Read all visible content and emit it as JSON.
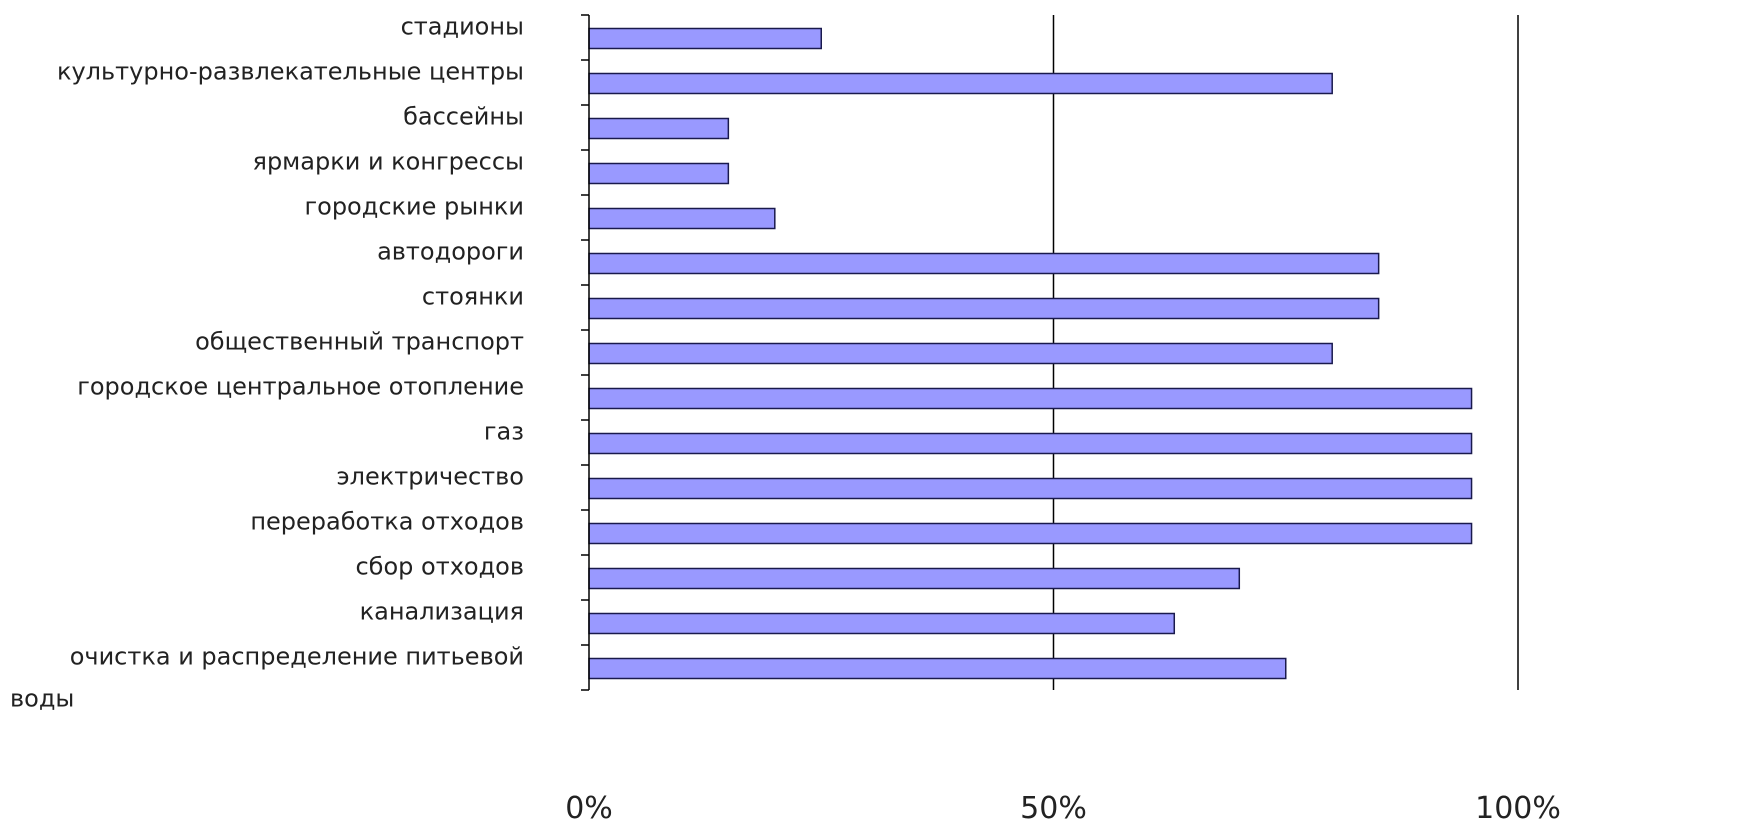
{
  "chart_data": {
    "type": "bar",
    "orientation": "horizontal",
    "title": "",
    "xlabel": "",
    "ylabel": "",
    "xlim": [
      0,
      100
    ],
    "x_ticks": [
      "0%",
      "50%",
      "100%"
    ],
    "grid": "vertical lines at 50% and 100%",
    "legend": "none",
    "bar_color": "#9999ff",
    "bar_edge_color": "#1a1a4d",
    "categories": [
      [
        "стадионы"
      ],
      [
        "культурно-развлекательные центры"
      ],
      [
        "бассейны"
      ],
      [
        "ярмарки и конгрессы"
      ],
      [
        "городские рынки"
      ],
      [
        "автодороги"
      ],
      [
        "стоянки"
      ],
      [
        "общественный транспорт"
      ],
      [
        "городское центральное отопление"
      ],
      [
        "газ"
      ],
      [
        "электричество"
      ],
      [
        "переработка отходов"
      ],
      [
        "сбор отходов"
      ],
      [
        "канализация"
      ],
      [
        "очистка и распределение питьевой",
        "воды"
      ]
    ],
    "values": [
      25,
      80,
      15,
      15,
      20,
      85,
      85,
      80,
      95,
      95,
      95,
      95,
      70,
      63,
      75
    ]
  }
}
